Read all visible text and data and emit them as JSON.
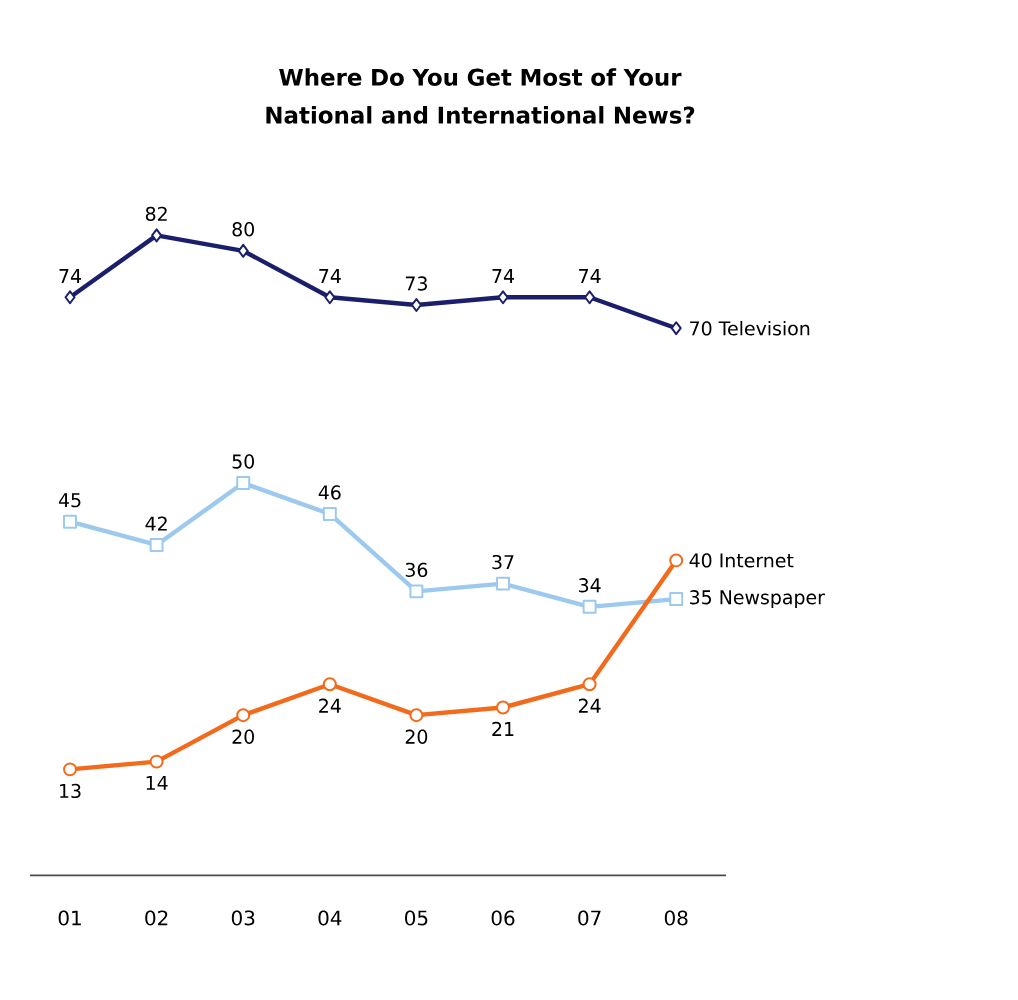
{
  "chart_data": {
    "type": "line",
    "title": "Where Do You Get Most of Your National and International News?",
    "categories": [
      "01",
      "02",
      "03",
      "04",
      "05",
      "06",
      "07",
      "08"
    ],
    "tick_labels": "x",
    "data_labels": true,
    "line_style": "solid",
    "series": [
      {
        "name": "Television",
        "color": "#1b1f6b",
        "marker": "diamond",
        "values": [
          74,
          82,
          80,
          74,
          73,
          74,
          74,
          70
        ]
      },
      {
        "name": "Newspaper",
        "color": "#9dc9ee",
        "marker": "square",
        "values": [
          45,
          42,
          50,
          46,
          36,
          37,
          34,
          35
        ]
      },
      {
        "name": "Internet",
        "color": "#f26a1b",
        "marker": "circle",
        "values": [
          13,
          14,
          20,
          24,
          20,
          21,
          24,
          40
        ]
      }
    ]
  }
}
